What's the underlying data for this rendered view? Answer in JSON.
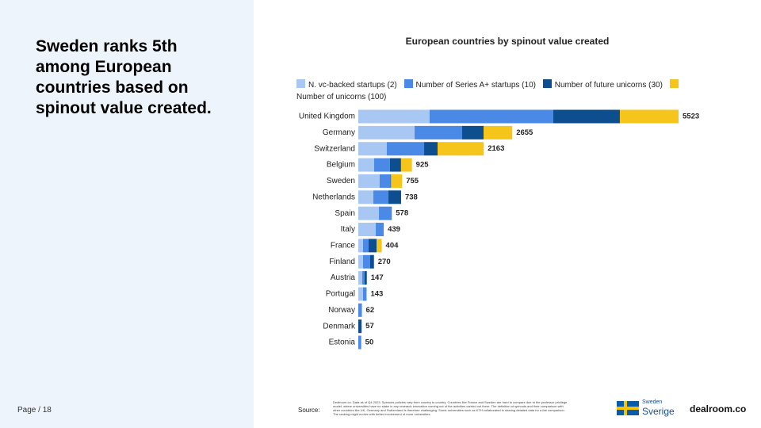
{
  "slide": {
    "title": "Sweden ranks 5th among European countries based on spinout value created.",
    "page_label": "Page / 18",
    "source_label": "Source:",
    "source_note": "Dealroom.co. Data as of Q4 2023. Spinouts policies vary from country to country. Countries like France and Sweden are hard to compare due to the professor privilege model, where universities have no stake in any research innovation coming out of the activities carried out there. The definition of spinouts and their comparison with other countries like UK, Germany and Switzerland is therefore challenging. Some universities such as KTH collaborated in sharing detailed data for a fair comparison. The ranking might evolve with better involvement of more universities.",
    "logo_se_small": "Sweden",
    "logo_se_big": "Sverige",
    "logo_dealroom": "dealroom.co"
  },
  "chart_data": {
    "type": "stacked-bar-horizontal",
    "title": "European countries by spinout value created",
    "categories": [
      "United Kingdom",
      "Germany",
      "Switzerland",
      "Belgium",
      "Sweden",
      "Netherlands",
      "Spain",
      "Italy",
      "France",
      "Finland",
      "Austria",
      "Portugal",
      "Norway",
      "Denmark",
      "Estonia"
    ],
    "series": [
      {
        "name": "N. vc-backed startups (2)",
        "color": "#a9c7f3",
        "values": [
          1230,
          971,
          492,
          273,
          369,
          260,
          356,
          301,
          82,
          82,
          68,
          82,
          0,
          0,
          0
        ]
      },
      {
        "name": "Number of Series A+ startups (10)",
        "color": "#4a8ae6",
        "values": [
          2133,
          820,
          643,
          273,
          186,
          260,
          222,
          138,
          96,
          123,
          41,
          61,
          62,
          0,
          50
        ]
      },
      {
        "name": "Number of future unicorns (30)",
        "color": "#0d4e8e",
        "values": [
          1148,
          369,
          232,
          191,
          10,
          218,
          0,
          0,
          137,
          65,
          38,
          0,
          0,
          57,
          0
        ]
      },
      {
        "name": "Number of unicorns (100)",
        "color": "#f6c51b",
        "values": [
          1012,
          495,
          796,
          188,
          190,
          0,
          0,
          0,
          89,
          0,
          0,
          0,
          0,
          0,
          0
        ]
      }
    ],
    "totals": [
      5523,
      2655,
      2163,
      925,
      755,
      738,
      578,
      439,
      404,
      270,
      147,
      143,
      62,
      57,
      50
    ]
  }
}
